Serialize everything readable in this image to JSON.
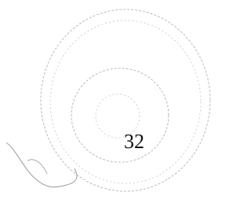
{
  "image": {
    "label": "32"
  }
}
